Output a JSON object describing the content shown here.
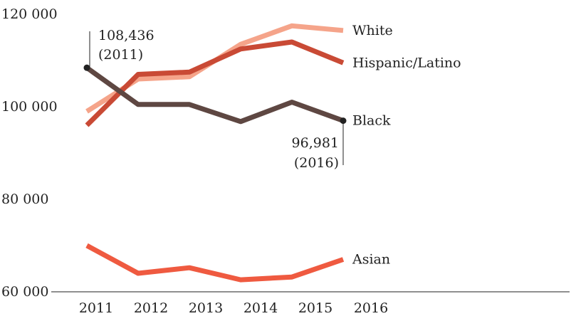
{
  "chart_data": {
    "type": "line",
    "title": "",
    "xlabel": "",
    "ylabel": "",
    "x": [
      "2011",
      "2012",
      "2013",
      "2014",
      "2015",
      "2016"
    ],
    "ylim": [
      60000,
      120000
    ],
    "yticks": [
      {
        "value": 60000,
        "label": "60 000"
      },
      {
        "value": 80000,
        "label": "80 000"
      },
      {
        "value": 100000,
        "label": "100 000"
      },
      {
        "value": 120000,
        "label": "120 000"
      }
    ],
    "grid": false,
    "legend": "inline-right",
    "series": [
      {
        "name": "White",
        "color": "#f5a48a",
        "values": [
          99000,
          106000,
          106500,
          113500,
          117500,
          116500
        ]
      },
      {
        "name": "Hispanic/Latino",
        "color": "#c94a35",
        "values": [
          96000,
          107000,
          107500,
          112500,
          114000,
          109500
        ]
      },
      {
        "name": "Black",
        "color": "#5e4742",
        "values": [
          108436,
          100500,
          100500,
          96800,
          101000,
          96981
        ]
      },
      {
        "name": "Asian",
        "color": "#ef5a40",
        "values": [
          70000,
          64000,
          65200,
          62600,
          63200,
          67000
        ]
      }
    ],
    "annotations": [
      {
        "series": "Black",
        "point": 0,
        "value_label": "108,436",
        "year_label": "(2011)"
      },
      {
        "series": "Black",
        "point": 5,
        "value_label": "96,981",
        "year_label": "(2016)"
      }
    ]
  }
}
